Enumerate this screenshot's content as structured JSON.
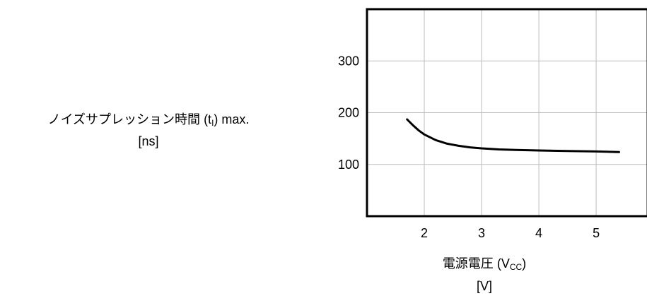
{
  "chart_data": {
    "type": "line",
    "ylabel": {
      "main": "ノイズサプレッション時間",
      "symbol_open": "(t",
      "symbol_sub": "I",
      "symbol_close": ") max.",
      "unit": "[ns]"
    },
    "xlabel": {
      "main": "電源電圧",
      "symbol_open": "(V",
      "symbol_sub": "CC",
      "symbol_close": ")",
      "unit": "[V]"
    },
    "xlim": [
      1,
      5.9
    ],
    "ylim": [
      0,
      400
    ],
    "xticks": [
      2,
      3,
      4,
      5
    ],
    "yticks": [
      100,
      200,
      300
    ],
    "grid": true,
    "series": [
      {
        "x": [
          1.7,
          1.8,
          1.9,
          2.0,
          2.2,
          2.4,
          2.6,
          2.8,
          3.0,
          3.3,
          3.6,
          4.0,
          4.5,
          5.0,
          5.4
        ],
        "y": [
          187,
          176,
          166,
          158,
          147,
          140,
          136,
          133,
          131,
          129,
          128,
          127,
          126,
          125,
          124
        ]
      }
    ]
  }
}
